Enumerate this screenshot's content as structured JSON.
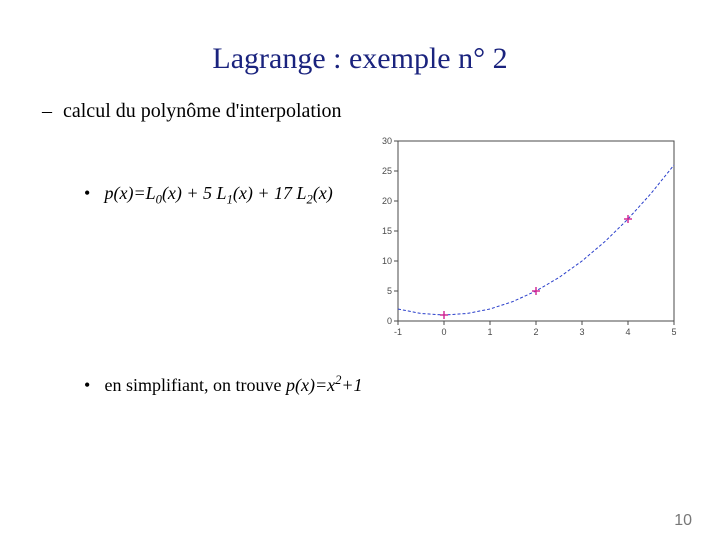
{
  "title": "Lagrange : exemple n° 2",
  "bullet1": "calcul du polynôme d'interpolation",
  "formula_prefix": "p(x)=L",
  "formula_part2": "(x) + 5 L",
  "formula_part3": "(x) + 17 L",
  "formula_part4": "(x)",
  "sub0": "0",
  "sub1": "1",
  "sub2": "2",
  "simplify_prefix": "en simplifiant, on trouve ",
  "simplify_fn": "p(x)=x",
  "simplify_exp": "2",
  "simplify_suffix": "+1",
  "page_number": "10",
  "chart": {
    "type": "line",
    "xlim": [
      -1,
      5
    ],
    "ylim": [
      0,
      30
    ],
    "xticks": [
      -1,
      0,
      1,
      2,
      3,
      4,
      5
    ],
    "yticks": [
      0,
      5,
      10,
      15,
      20,
      25,
      30
    ],
    "ytick_labels": [
      "0",
      "5",
      "10",
      "15",
      "20",
      "25",
      "30"
    ],
    "curve_color": "#2a3fcb",
    "curve_style": "dashed",
    "marker_color": "#d02090",
    "marker_style": "plus",
    "axis_color": "#4a4a4a",
    "tick_fontsize": 9,
    "curve_points_x": [
      -1,
      -0.5,
      0,
      0.5,
      1,
      1.5,
      2,
      2.5,
      3,
      3.5,
      4,
      4.5,
      5
    ],
    "curve_points_y": [
      2,
      1.25,
      1,
      1.25,
      2,
      3.25,
      5,
      7.25,
      10,
      13.25,
      17,
      21.25,
      26
    ],
    "data_points": [
      {
        "x": 0,
        "y": 1
      },
      {
        "x": 2,
        "y": 5
      },
      {
        "x": 4,
        "y": 17
      }
    ]
  }
}
